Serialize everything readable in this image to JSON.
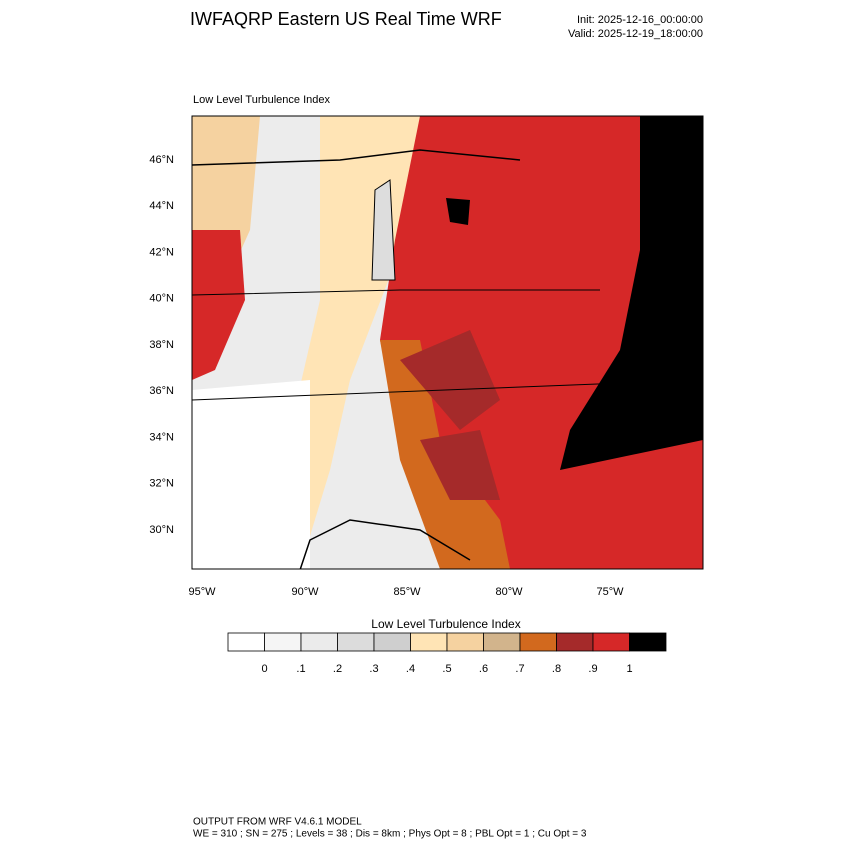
{
  "header": {
    "title": "IWFAQRP Eastern US Real Time WRF",
    "init": "Init: 2025-12-16_00:00:00",
    "valid": "Valid: 2025-12-19_18:00:00"
  },
  "map": {
    "title": "Low Level Turbulence Index",
    "lat_labels": [
      "46°N",
      "44°N",
      "42°N",
      "40°N",
      "38°N",
      "36°N",
      "34°N",
      "32°N",
      "30°N"
    ],
    "lon_labels": [
      "95°W",
      "90°W",
      "85°W",
      "80°W",
      "75°W"
    ]
  },
  "colorbar": {
    "title": "Low Level Turbulence Index",
    "colors": [
      "#ffffff",
      "#f5f5f5",
      "#ebebeb",
      "#dcdcdc",
      "#cfcfcf",
      "#ffe4b5",
      "#f5d2a0",
      "#d2b48c",
      "#d2691e",
      "#a52a2a",
      "#d62828",
      "#000000"
    ],
    "labels": [
      "0",
      ".1",
      ".2",
      ".3",
      ".4",
      ".5",
      ".6",
      ".7",
      ".8",
      ".9",
      "1"
    ]
  },
  "footer": {
    "line1": "OUTPUT FROM WRF V4.6.1 MODEL",
    "line2": "WE = 310 ; SN = 275 ; Levels = 38 ; Dis = 8km ; Phys Opt = 8 ; PBL Opt = 1 ; Cu Opt = 3"
  }
}
